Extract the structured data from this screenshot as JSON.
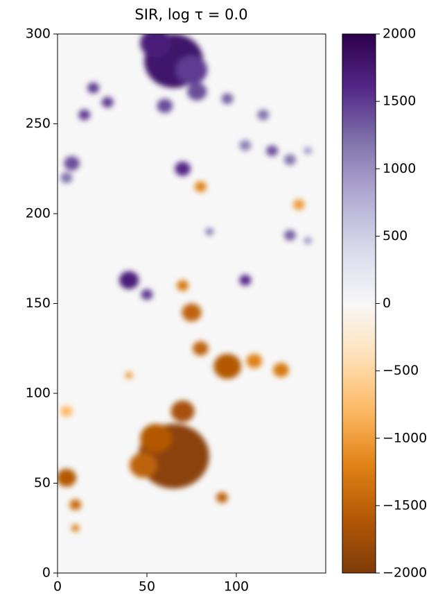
{
  "chart_data": {
    "type": "heatmap",
    "title": "SIR, log τ = 0.0",
    "xlim": [
      0,
      150
    ],
    "ylim": [
      0,
      300
    ],
    "xticks": [
      0,
      50,
      100
    ],
    "yticks": [
      0,
      50,
      100,
      150,
      200,
      250,
      300
    ],
    "clim": [
      -2000,
      2000
    ],
    "cticks": [
      {
        "value": -2000,
        "label": "−2000"
      },
      {
        "value": -1500,
        "label": "−1500"
      },
      {
        "value": -1000,
        "label": "−1000"
      },
      {
        "value": -500,
        "label": "−500"
      },
      0,
      500,
      1000,
      1500,
      2000
    ],
    "colormap": [
      "#7f3b08",
      "#b35806",
      "#e08214",
      "#fdb863",
      "#fee0b6",
      "#f7f7f7",
      "#d8daeb",
      "#b2abd2",
      "#8073ac",
      "#542788",
      "#2d004b"
    ],
    "features": [
      {
        "x": 65,
        "y": 285,
        "r": 15,
        "value": 1800
      },
      {
        "x": 55,
        "y": 295,
        "r": 8,
        "value": 1700
      },
      {
        "x": 75,
        "y": 280,
        "r": 8,
        "value": 1500
      },
      {
        "x": 20,
        "y": 270,
        "r": 3,
        "value": 1500
      },
      {
        "x": 28,
        "y": 262,
        "r": 3,
        "value": 1500
      },
      {
        "x": 15,
        "y": 255,
        "r": 3,
        "value": 1500
      },
      {
        "x": 60,
        "y": 260,
        "r": 4,
        "value": 1400
      },
      {
        "x": 78,
        "y": 268,
        "r": 5,
        "value": 1400
      },
      {
        "x": 95,
        "y": 264,
        "r": 3,
        "value": 1300
      },
      {
        "x": 115,
        "y": 255,
        "r": 3,
        "value": 1200
      },
      {
        "x": 8,
        "y": 228,
        "r": 4,
        "value": 1400
      },
      {
        "x": 5,
        "y": 220,
        "r": 3,
        "value": 1200
      },
      {
        "x": 70,
        "y": 225,
        "r": 4,
        "value": 1600
      },
      {
        "x": 120,
        "y": 235,
        "r": 3,
        "value": 1400
      },
      {
        "x": 130,
        "y": 230,
        "r": 3,
        "value": 1200
      },
      {
        "x": 105,
        "y": 238,
        "r": 3,
        "value": 1100
      },
      {
        "x": 140,
        "y": 235,
        "r": 2,
        "value": 1000
      },
      {
        "x": 85,
        "y": 190,
        "r": 2,
        "value": 1200
      },
      {
        "x": 130,
        "y": 188,
        "r": 3,
        "value": 1300
      },
      {
        "x": 140,
        "y": 185,
        "r": 2,
        "value": 1000
      },
      {
        "x": 40,
        "y": 163,
        "r": 5,
        "value": 1700
      },
      {
        "x": 105,
        "y": 163,
        "r": 3,
        "value": 1600
      },
      {
        "x": 50,
        "y": 155,
        "r": 3,
        "value": 1500
      },
      {
        "x": 80,
        "y": 215,
        "r": 3,
        "value": -1200
      },
      {
        "x": 135,
        "y": 205,
        "r": 3,
        "value": -1000
      },
      {
        "x": 70,
        "y": 160,
        "r": 3,
        "value": -1300
      },
      {
        "x": 75,
        "y": 145,
        "r": 5,
        "value": -1500
      },
      {
        "x": 95,
        "y": 115,
        "r": 7,
        "value": -1600
      },
      {
        "x": 80,
        "y": 125,
        "r": 4,
        "value": -1500
      },
      {
        "x": 125,
        "y": 113,
        "r": 4,
        "value": -1300
      },
      {
        "x": 110,
        "y": 118,
        "r": 4,
        "value": -1200
      },
      {
        "x": 65,
        "y": 65,
        "r": 18,
        "value": -1900
      },
      {
        "x": 70,
        "y": 90,
        "r": 6,
        "value": -1700
      },
      {
        "x": 55,
        "y": 75,
        "r": 8,
        "value": -1600
      },
      {
        "x": 48,
        "y": 60,
        "r": 7,
        "value": -1500
      },
      {
        "x": 5,
        "y": 53,
        "r": 5,
        "value": -1600
      },
      {
        "x": 10,
        "y": 38,
        "r": 3,
        "value": -1400
      },
      {
        "x": 10,
        "y": 25,
        "r": 2,
        "value": -1300
      },
      {
        "x": 92,
        "y": 42,
        "r": 3,
        "value": -1500
      },
      {
        "x": 40,
        "y": 110,
        "r": 2,
        "value": -1000
      },
      {
        "x": 5,
        "y": 90,
        "r": 3,
        "value": -800
      }
    ]
  }
}
